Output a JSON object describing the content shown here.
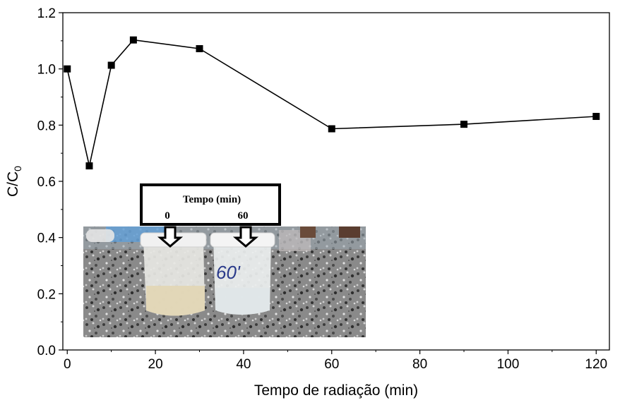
{
  "chart_data": {
    "type": "line",
    "x": [
      0,
      5,
      10,
      15,
      30,
      60,
      90,
      120
    ],
    "series": [
      {
        "values": [
          1.0,
          0.655,
          1.013,
          1.103,
          1.072,
          0.787,
          0.803,
          0.831
        ]
      }
    ],
    "xlabel": "Tempo de radiação (min)",
    "ylabel": "C/C",
    "ylabel_sub": "0",
    "xlim": [
      -1,
      123
    ],
    "ylim": [
      0,
      1.2
    ],
    "xticks": [
      0,
      20,
      40,
      60,
      80,
      100,
      120
    ],
    "yticks": [
      0.0,
      0.2,
      0.4,
      0.6,
      0.8,
      1.0,
      1.2
    ],
    "yticks_labels": [
      "0.0",
      "0.2",
      "0.4",
      "0.6",
      "0.8",
      "1.0",
      "1.2"
    ],
    "grid": false,
    "line_color": "#000000",
    "marker": "square",
    "inset": {
      "box_title": "Tempo (min)",
      "box_label_left": "0",
      "box_label_right": "60",
      "cup_handwriting": "60'"
    }
  }
}
